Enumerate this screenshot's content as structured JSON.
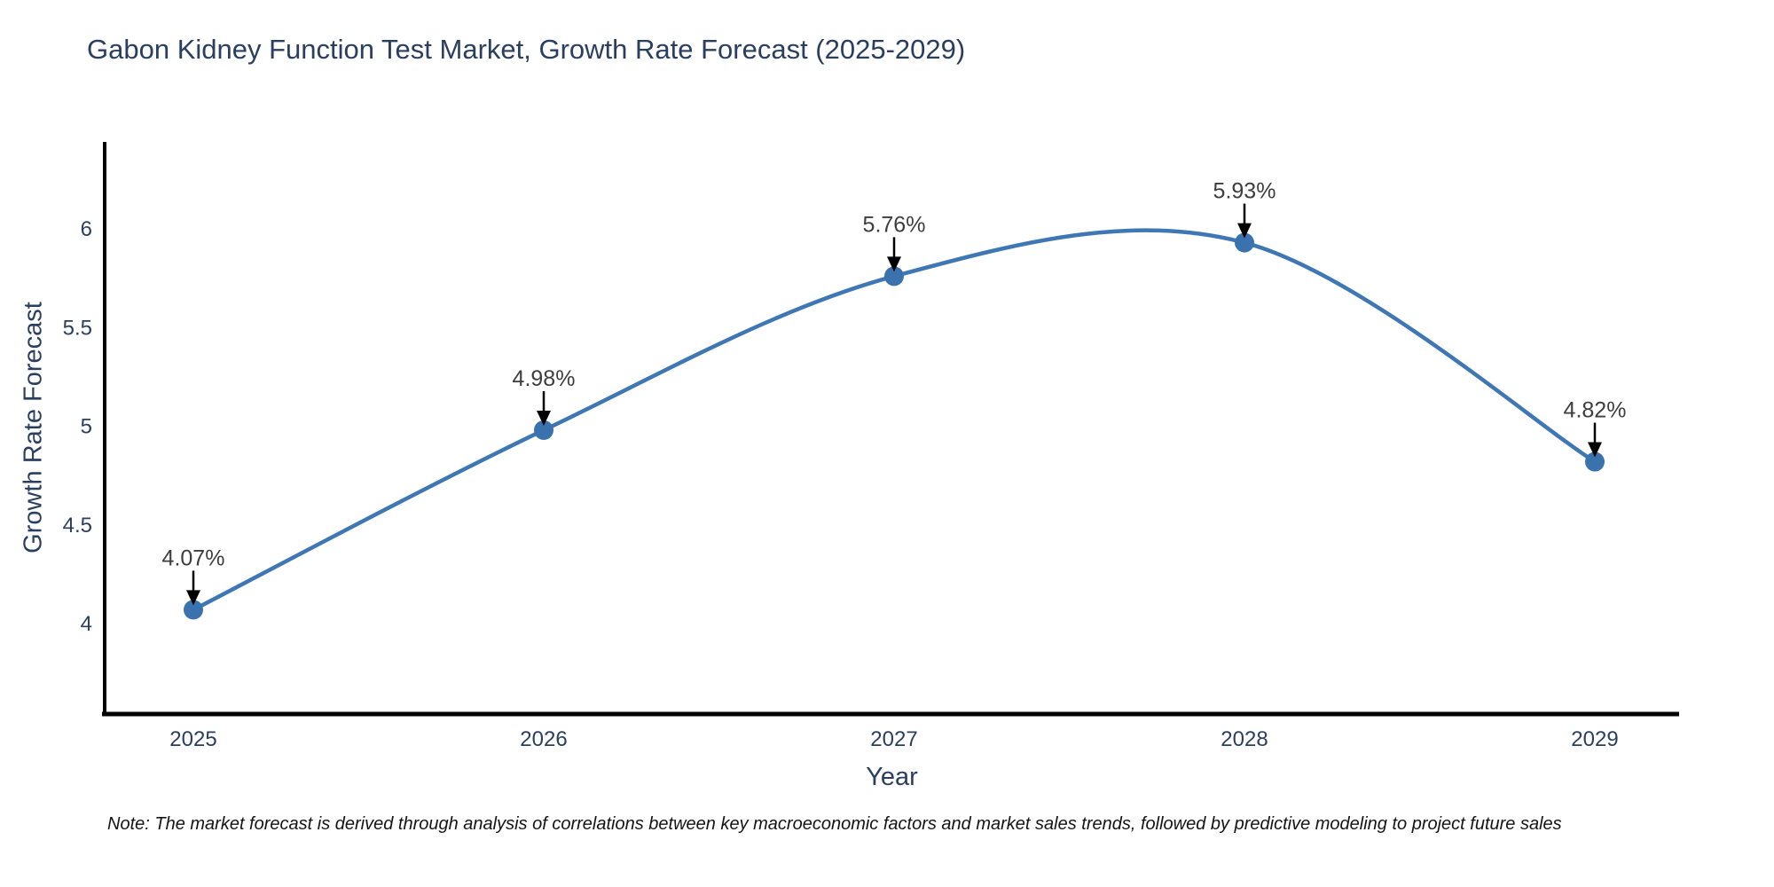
{
  "header": {
    "title": "Gabon Kidney Function Test Market, Growth Rate Forecast (2025-2029)"
  },
  "footnote": "Note: The market forecast is derived through analysis of correlations between key macroeconomic factors and market sales trends, followed by predictive modeling to project future sales",
  "chart_data": {
    "type": "line",
    "title": "Gabon Kidney Function Test Market, Growth Rate Forecast (2025-2029)",
    "xlabel": "Year",
    "ylabel": "Growth Rate Forecast",
    "x": [
      2025,
      2026,
      2027,
      2028,
      2029
    ],
    "values": [
      4.07,
      4.98,
      5.76,
      5.93,
      4.82
    ],
    "point_labels": [
      "4.07%",
      "4.98%",
      "5.76%",
      "5.93%",
      "4.82%"
    ],
    "xticks": [
      "2025",
      "2026",
      "2027",
      "2028",
      "2029"
    ],
    "yticks": [
      4,
      4.5,
      5,
      5.5,
      6
    ],
    "ylim": [
      3.54,
      6.44
    ],
    "line_shape": "spline",
    "grid": false,
    "legend": "none",
    "colors": {
      "line": "#3f77b4",
      "marker": "#3a72ad",
      "annotation_text": "#3d3d3d",
      "annotation_arrow": "#000000",
      "axis_line": "#000000",
      "tick_label": "#2a3f5f",
      "title": "#2a3f5f",
      "note": "#141414"
    }
  }
}
